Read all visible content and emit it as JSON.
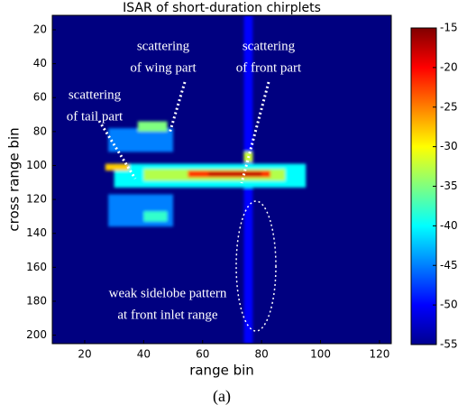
{
  "chart_data": {
    "type": "heatmap",
    "title": "ISAR of short-duration chirplets",
    "xlabel": "range bin",
    "ylabel": "cross range bin",
    "caption": "(a)",
    "xlim": [
      9,
      124
    ],
    "xticks": [
      20,
      40,
      60,
      80,
      100,
      120
    ],
    "ylim": [
      11.5,
      205
    ],
    "yticks": [
      20,
      40,
      60,
      80,
      100,
      120,
      140,
      160,
      180,
      200
    ],
    "y_inverted": true,
    "colormap": "jet",
    "clim": [
      -55,
      -15
    ],
    "cticks": [
      -15,
      -20,
      -25,
      -30,
      -35,
      -40,
      -45,
      -50,
      -55
    ],
    "background": -55,
    "cells": [
      {
        "x": [
          74,
          77
        ],
        "y": [
          11.5,
          205
        ],
        "value": -50
      },
      {
        "x": [
          28,
          50
        ],
        "y": [
          78,
          92
        ],
        "value": -45
      },
      {
        "x": [
          28,
          50
        ],
        "y": [
          117,
          136
        ],
        "value": -45
      },
      {
        "x": [
          40,
          48
        ],
        "y": [
          127,
          133
        ],
        "value": -38
      },
      {
        "x": [
          38,
          48
        ],
        "y": [
          74,
          80
        ],
        "value": -35
      },
      {
        "x": [
          30,
          95
        ],
        "y": [
          99,
          113
        ],
        "value": -40
      },
      {
        "x": [
          40,
          88
        ],
        "y": [
          102,
          109
        ],
        "value": -33
      },
      {
        "x": [
          74,
          77
        ],
        "y": [
          92,
          98
        ],
        "value": -32
      },
      {
        "x": [
          27,
          35
        ],
        "y": [
          99,
          103
        ],
        "value": -28
      },
      {
        "x": [
          55,
          83
        ],
        "y": [
          103,
          107
        ],
        "value": -22
      },
      {
        "x": [
          62,
          80
        ],
        "y": [
          104,
          106
        ],
        "value": -17
      }
    ],
    "annotations": [
      {
        "lines": [
          "scattering",
          "of tail part"
        ]
      },
      {
        "lines": [
          "scattering",
          "of wing part"
        ]
      },
      {
        "lines": [
          "scattering",
          "of front part"
        ]
      },
      {
        "lines": [
          "weak sidelobe pattern",
          "at front inlet range"
        ]
      }
    ]
  }
}
